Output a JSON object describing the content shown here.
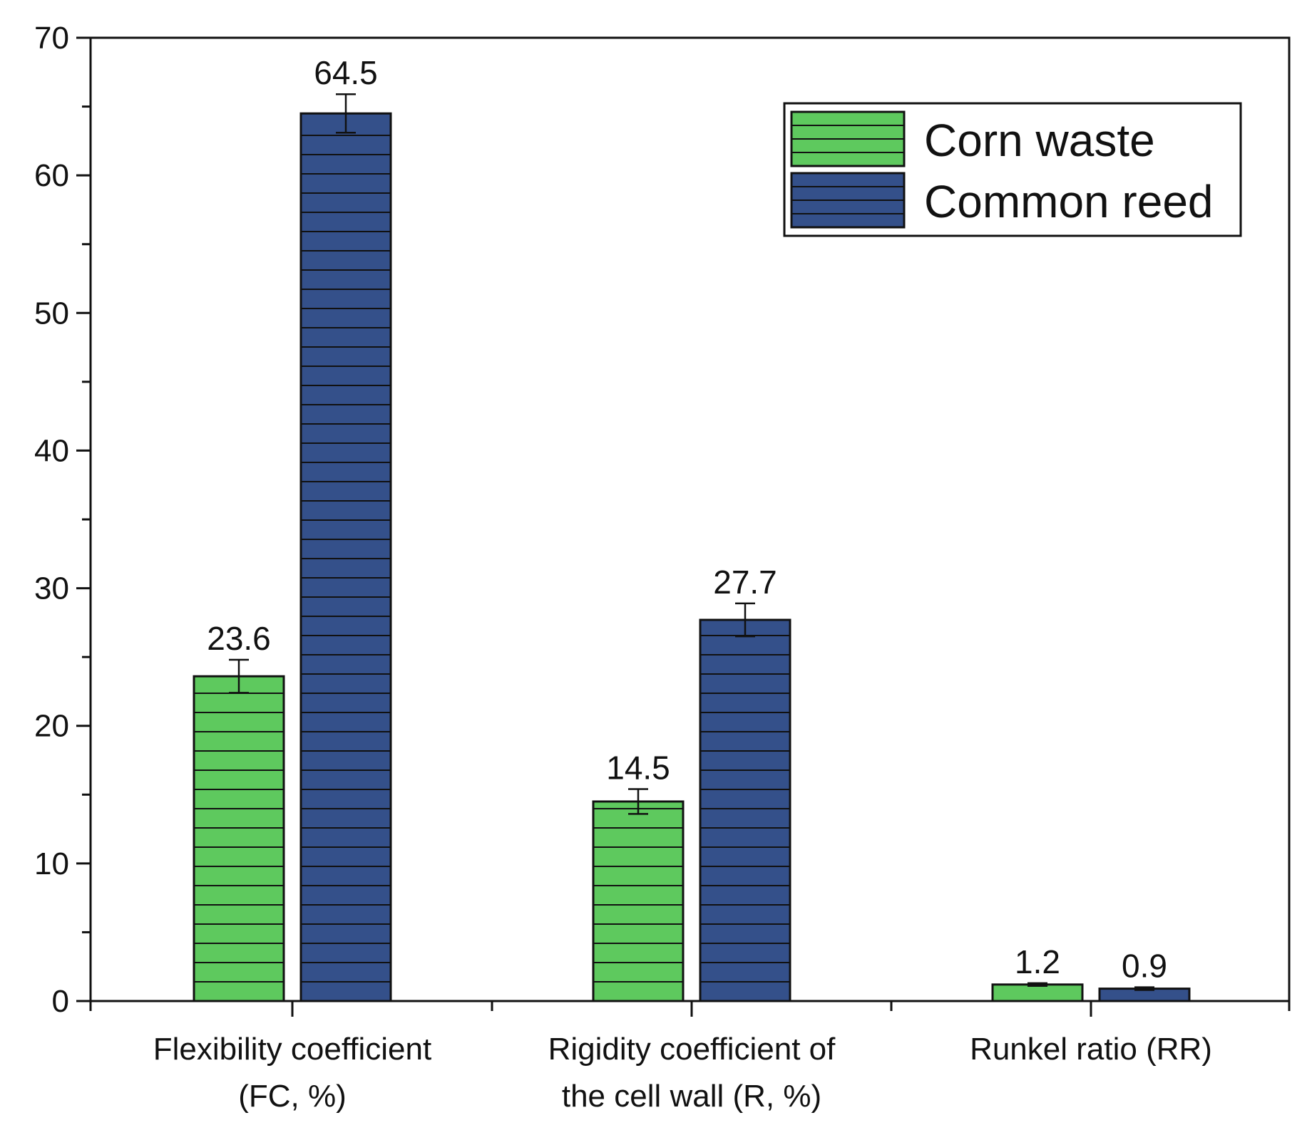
{
  "chart_data": {
    "type": "bar",
    "title": "",
    "xlabel": "",
    "ylabel": "",
    "ylim": [
      0,
      70
    ],
    "yticks": [
      0,
      10,
      20,
      30,
      40,
      50,
      60,
      70
    ],
    "categories": [
      [
        "Flexibility coefficient",
        "(FC, %)"
      ],
      [
        "Rigidity coefficient of",
        "the cell wall (R, %)"
      ],
      [
        "Runkel ratio (RR)"
      ]
    ],
    "series": [
      {
        "name": "Corn waste",
        "color": "#5ec95e",
        "values": [
          23.6,
          14.5,
          1.2
        ],
        "errors": [
          1.2,
          0.9,
          0.1
        ],
        "labels": [
          "23.6",
          "14.5",
          "1.2"
        ]
      },
      {
        "name": "Common reed",
        "color": "#34508a",
        "values": [
          64.5,
          27.7,
          0.9
        ],
        "errors": [
          1.4,
          1.2,
          0.1
        ],
        "labels": [
          "64.5",
          "27.7",
          "0.9"
        ]
      }
    ],
    "hatch": "horizontal",
    "legend_position": "top-right",
    "grid": false
  }
}
